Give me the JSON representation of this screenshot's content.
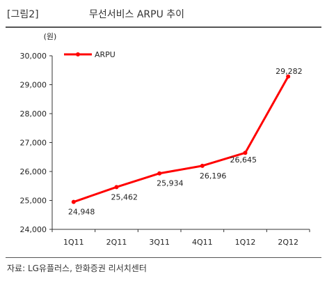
{
  "header": {
    "figure_label": "[그림2]",
    "title": "무선서비스 ARPU 추이"
  },
  "source": "자료: LG유플러스, 한화증권 리서치센터",
  "chart_data": {
    "type": "line",
    "title": "무선서비스 ARPU 추이",
    "unit_label": "(원)",
    "categories": [
      "1Q11",
      "2Q11",
      "3Q11",
      "4Q11",
      "1Q12",
      "2Q12"
    ],
    "series": [
      {
        "name": "ARPU",
        "values": [
          24948,
          25462,
          25934,
          26196,
          26645,
          29282
        ],
        "color": "#ff0000"
      }
    ],
    "data_labels": [
      "24,948",
      "25,462",
      "25,934",
      "26,196",
      "26,645",
      "29,282"
    ],
    "yticks": [
      "24,000",
      "25,000",
      "26,000",
      "27,000",
      "28,000",
      "29,000",
      "30,000"
    ],
    "ylim": [
      24000,
      30000
    ],
    "legend_position": "top-left",
    "grid": false
  }
}
